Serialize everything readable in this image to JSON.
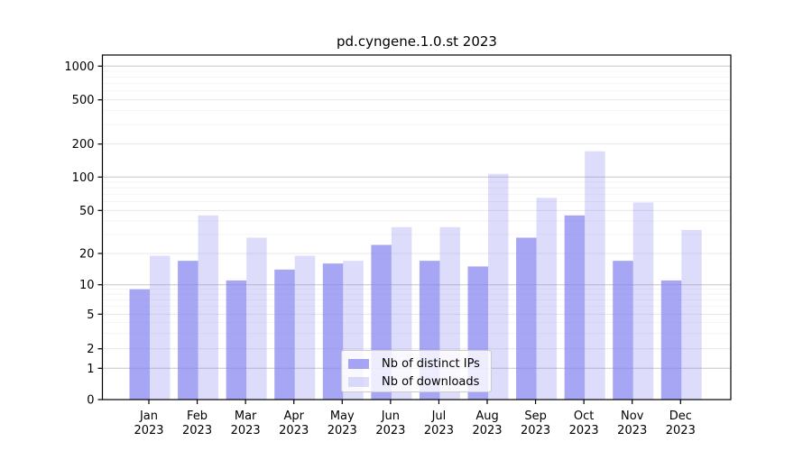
{
  "figure": {
    "title": "pd.cyngene.1.0.st 2023",
    "background": "#ffffff"
  },
  "chart_data": {
    "type": "bar",
    "title": "pd.cyngene.1.0.st 2023",
    "categories": [
      "Jan",
      "Feb",
      "Mar",
      "Apr",
      "May",
      "Jun",
      "Jul",
      "Aug",
      "Sep",
      "Oct",
      "Nov",
      "Dec"
    ],
    "year_label": "2023",
    "series": [
      {
        "name": "Nb of distinct IPs",
        "color": "rgba(128,128,240,0.70)",
        "values": [
          9,
          17,
          11,
          14,
          16,
          24,
          17,
          15,
          28,
          45,
          17,
          11
        ]
      },
      {
        "name": "Nb of downloads",
        "color": "rgba(128,128,240,0.27)",
        "values": [
          19,
          45,
          28,
          19,
          17,
          35,
          35,
          107,
          65,
          172,
          59,
          33
        ]
      }
    ],
    "yscale": "symlog",
    "ylim": [
      0,
      1000
    ],
    "yticks": [
      0,
      1,
      2,
      5,
      10,
      20,
      50,
      100,
      200,
      500,
      1000
    ],
    "minor_gridlines": [
      3,
      4,
      6,
      7,
      8,
      9,
      30,
      40,
      60,
      70,
      80,
      90,
      300,
      400,
      600,
      700,
      800,
      900
    ],
    "grid": true,
    "legend": {
      "position": "lower-center",
      "entries": [
        "Nb of distinct IPs",
        "Nb of downloads"
      ]
    },
    "colors": {
      "bar_base": "#8080f0",
      "decade_gridline": "#c6c6c6",
      "mid_gridline": "#e3e3e3",
      "minor_gridline": "#f2f2f2",
      "axis": "#000000"
    }
  }
}
